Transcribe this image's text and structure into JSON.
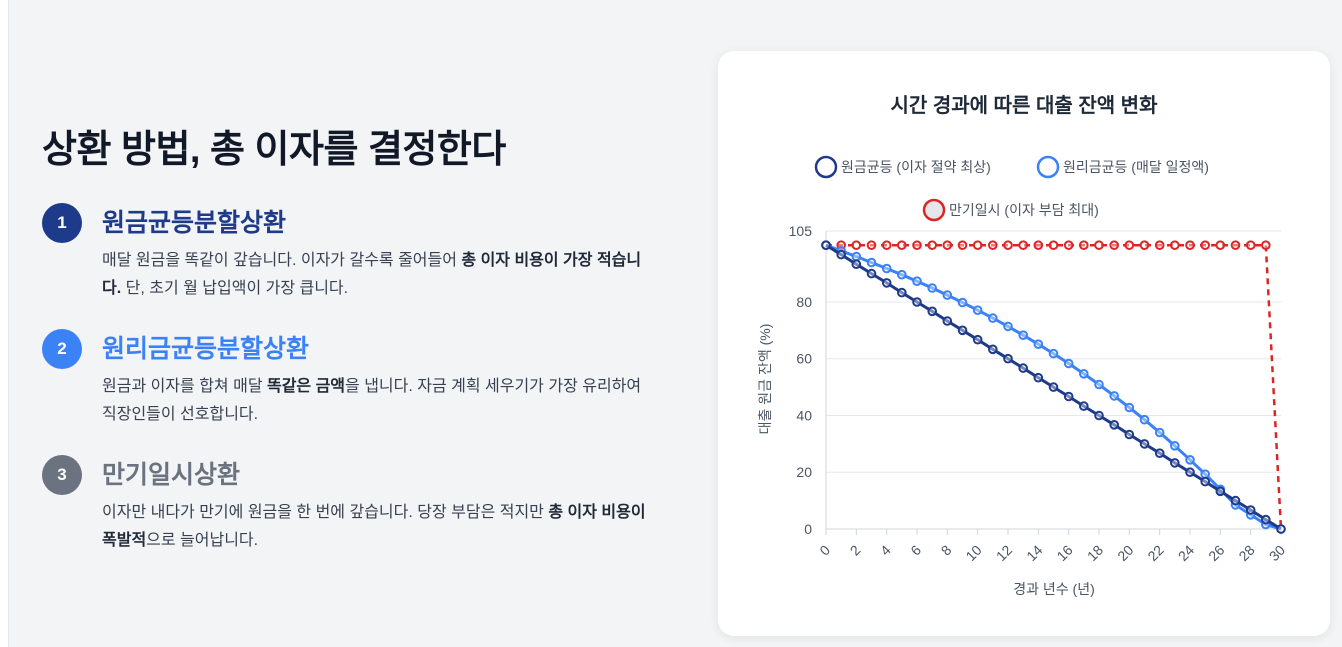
{
  "heading": "상환 방법, 총 이자를 결정한다",
  "methods": [
    {
      "num": "1",
      "title": "원금균등분할상환",
      "color": "#1e3a8a",
      "desc_a": "매달 원금을 똑같이 갚습니다. 이자가 갈수록 줄어들어 ",
      "desc_b": "총 이자 비용이 가장 적습니다.",
      "desc_c": " 단, 초기 월 납입액이 가장 큽니다."
    },
    {
      "num": "2",
      "title": "원리금균등분할상환",
      "color": "#3b82f6",
      "desc_a": "원금과 이자를 합쳐 매달 ",
      "desc_b": "똑같은 금액",
      "desc_c": "을 냅니다. 자금 계획 세우기가 가장 유리하여 직장인들이 선호합니다."
    },
    {
      "num": "3",
      "title": "만기일시상환",
      "color": "#6b7280",
      "desc_a": "이자만 내다가 만기에 원금을 한 번에 갚습니다. 당장 부담은 적지만 ",
      "desc_b": "총 이자 비용이 폭발적",
      "desc_c": "으로 늘어납니다."
    }
  ],
  "chart_data": {
    "type": "line",
    "title": "시간 경과에 따른 대출 잔액 변화",
    "xlabel": "경과 년수 (년)",
    "ylabel": "대출 원금 잔액 (%)",
    "ylim": [
      0,
      105
    ],
    "yticks": [
      0,
      20,
      40,
      60,
      80,
      105
    ],
    "xticks": [
      0,
      2,
      4,
      6,
      8,
      10,
      12,
      14,
      16,
      18,
      20,
      22,
      24,
      26,
      28,
      30
    ],
    "grid": true,
    "legend_position": "top",
    "x": [
      0,
      1,
      2,
      3,
      4,
      5,
      6,
      7,
      8,
      9,
      10,
      11,
      12,
      13,
      14,
      15,
      16,
      17,
      18,
      19,
      20,
      21,
      22,
      23,
      24,
      25,
      26,
      27,
      28,
      29,
      30
    ],
    "series": [
      {
        "name": "원금균등 (이자 절약 최상)",
        "color": "#1e3a8a",
        "values": [
          100,
          96.7,
          93.3,
          90,
          86.7,
          83.3,
          80,
          76.7,
          73.3,
          70,
          66.7,
          63.3,
          60,
          56.7,
          53.3,
          50,
          46.7,
          43.3,
          40,
          36.7,
          33.3,
          30,
          26.7,
          23.3,
          20,
          16.7,
          13.3,
          10,
          6.7,
          3.3,
          0
        ]
      },
      {
        "name": "원리금균등 (매달 일정액)",
        "color": "#3b82f6",
        "values": [
          100,
          98,
          96,
          93.9,
          91.8,
          89.6,
          87.3,
          84.9,
          82.4,
          79.8,
          77.1,
          74.3,
          71.4,
          68.3,
          65.1,
          61.8,
          58.3,
          54.7,
          50.9,
          46.9,
          42.8,
          38.5,
          34,
          29.3,
          24.4,
          19.3,
          14,
          8.5,
          5,
          1.6,
          0
        ]
      },
      {
        "name": "만기일시 (이자 부담 최대)",
        "color": "#dc2626",
        "values": [
          100,
          100,
          100,
          100,
          100,
          100,
          100,
          100,
          100,
          100,
          100,
          100,
          100,
          100,
          100,
          100,
          100,
          100,
          100,
          100,
          100,
          100,
          100,
          100,
          100,
          100,
          100,
          100,
          100,
          100,
          0
        ]
      }
    ]
  }
}
